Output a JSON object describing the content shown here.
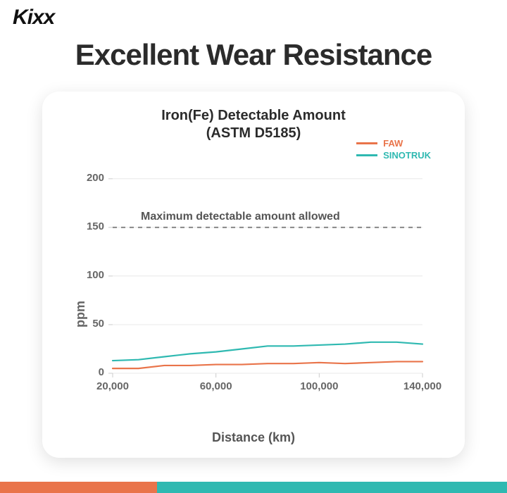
{
  "brand": {
    "logo_text": "Kixx",
    "logo_fontsize": 30
  },
  "page_title": {
    "text": "Excellent Wear Resistance",
    "fontsize": 42
  },
  "chart": {
    "type": "line",
    "title_line1": "Iron(Fe) Detectable Amount",
    "title_line2": "(ASTM D5185)",
    "title_fontsize": 20,
    "xlabel": "Distance (km)",
    "ylabel": "ppm",
    "axis_label_fontsize": 18,
    "tick_fontsize": 15,
    "xlim": [
      20000,
      140000
    ],
    "ylim": [
      0,
      210
    ],
    "ytick_vals": [
      0,
      50,
      100,
      150,
      200
    ],
    "ytick_labels": [
      "0",
      "50",
      "100",
      "150",
      "200"
    ],
    "xtick_vals": [
      20000,
      60000,
      100000,
      140000
    ],
    "xtick_labels": [
      "20,000",
      "60,000",
      "100,000",
      "140,000"
    ],
    "threshold": {
      "value": 150,
      "label": "Maximum detectable amount allowed",
      "label_fontsize": 16,
      "line_color": "#888888",
      "dash": "6,6",
      "line_width": 2
    },
    "grid_color": "#e8e8e8",
    "tick_color": "#cccccc",
    "line_width": 2.2,
    "series": {
      "FAW": {
        "label": "FAW",
        "color": "#e9744a",
        "x": [
          20000,
          30000,
          40000,
          50000,
          60000,
          70000,
          80000,
          90000,
          100000,
          110000,
          120000,
          130000,
          140000
        ],
        "y": [
          5,
          5,
          8,
          8,
          9,
          9,
          10,
          10,
          11,
          10,
          11,
          12,
          12
        ]
      },
      "SINOTRUK": {
        "label": "SINOTRUK",
        "color": "#2fb9b1",
        "x": [
          20000,
          30000,
          40000,
          50000,
          60000,
          70000,
          80000,
          90000,
          100000,
          110000,
          120000,
          130000,
          140000
        ],
        "y": [
          13,
          14,
          17,
          20,
          22,
          25,
          28,
          28,
          29,
          30,
          32,
          32,
          30
        ]
      }
    },
    "legend_fontsize": 13,
    "background_color": "#ffffff"
  },
  "footer": {
    "segments": [
      {
        "color": "#e9744a",
        "width_pct": 31
      },
      {
        "color": "#2fb9b1",
        "width_pct": 69
      }
    ]
  }
}
